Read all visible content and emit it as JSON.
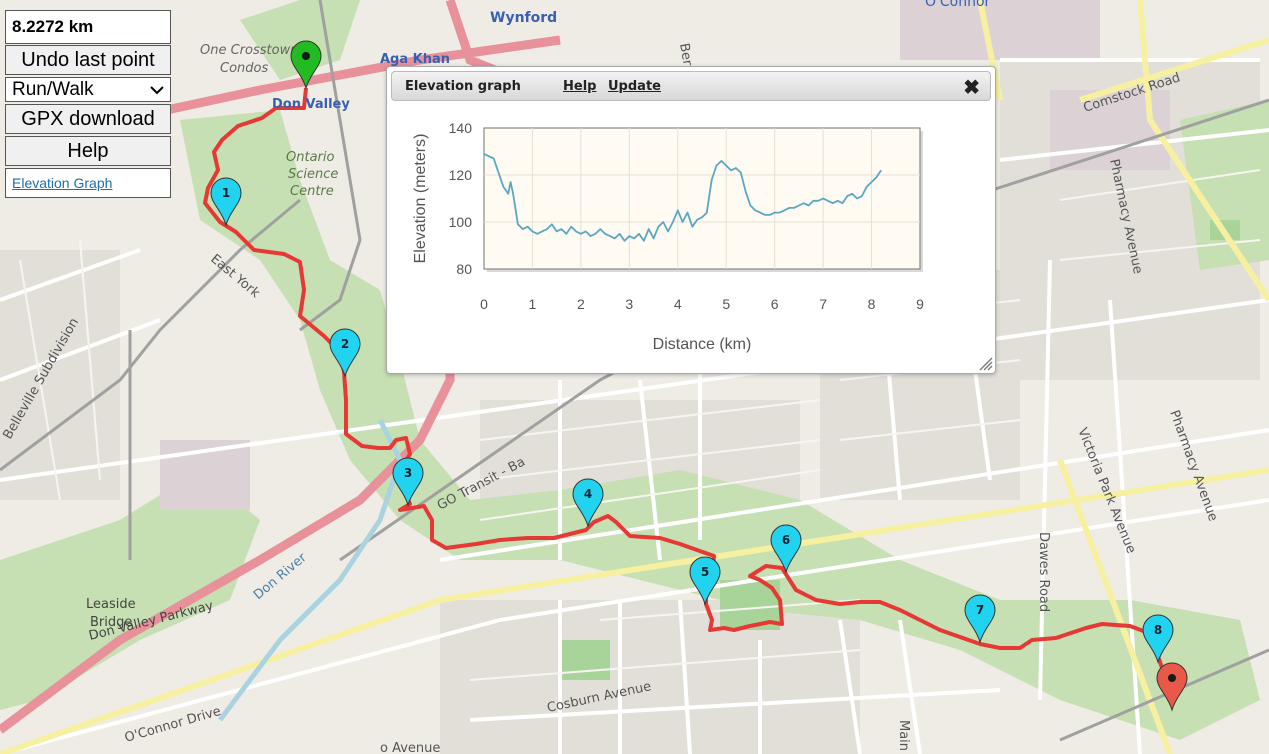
{
  "controls": {
    "distance": "8.2272 km",
    "undo_label": "Undo last point",
    "mode_value": "Run/Walk",
    "gpx_label": "GPX download",
    "help_label": "Help",
    "graph_link": "Elevation Graph"
  },
  "dialog": {
    "title": "Elevation graph",
    "help_link": "Help",
    "update_link": "Update",
    "close_icon": "close-icon"
  },
  "chart_data": {
    "type": "line",
    "title": "",
    "xlabel": "Distance (km)",
    "ylabel": "Elevation (meters)",
    "xlim": [
      0,
      9
    ],
    "ylim": [
      80,
      140
    ],
    "x_ticks": [
      "0",
      "1",
      "2",
      "3",
      "4",
      "5",
      "6",
      "7",
      "8",
      "9"
    ],
    "y_ticks": [
      "80",
      "100",
      "120",
      "140"
    ],
    "grid": true,
    "color": "#5ba7c2",
    "x": [
      0,
      0.1,
      0.2,
      0.3,
      0.4,
      0.5,
      0.55,
      0.6,
      0.7,
      0.8,
      0.9,
      1.0,
      1.1,
      1.2,
      1.3,
      1.4,
      1.5,
      1.6,
      1.7,
      1.8,
      1.9,
      2.0,
      2.1,
      2.2,
      2.3,
      2.4,
      2.5,
      2.6,
      2.7,
      2.8,
      2.9,
      3.0,
      3.1,
      3.2,
      3.3,
      3.4,
      3.5,
      3.6,
      3.7,
      3.8,
      3.9,
      4.0,
      4.1,
      4.2,
      4.3,
      4.4,
      4.5,
      4.6,
      4.7,
      4.8,
      4.9,
      5.0,
      5.1,
      5.2,
      5.3,
      5.4,
      5.5,
      5.6,
      5.7,
      5.8,
      5.9,
      6.0,
      6.1,
      6.2,
      6.3,
      6.4,
      6.5,
      6.6,
      6.7,
      6.8,
      6.9,
      7.0,
      7.1,
      7.2,
      7.3,
      7.4,
      7.5,
      7.6,
      7.7,
      7.8,
      7.9,
      8.0,
      8.1,
      8.2
    ],
    "y": [
      129,
      128,
      127,
      121,
      115,
      112,
      117,
      112,
      99,
      97,
      98,
      96,
      95,
      96,
      97,
      99,
      96,
      97,
      95,
      98,
      96,
      95,
      96,
      94,
      95,
      97,
      95,
      94,
      93,
      95,
      92,
      94,
      93,
      95,
      92,
      97,
      93,
      98,
      100,
      96,
      100,
      105,
      100,
      104,
      98,
      101,
      102,
      104,
      118,
      124,
      126,
      124,
      122,
      123,
      121,
      113,
      107,
      105,
      104,
      103,
      103,
      104,
      104,
      105,
      106,
      106,
      107,
      108,
      107,
      109,
      109,
      110,
      109,
      108,
      109,
      108,
      111,
      112,
      110,
      111,
      115,
      117,
      119,
      122
    ]
  }
}
